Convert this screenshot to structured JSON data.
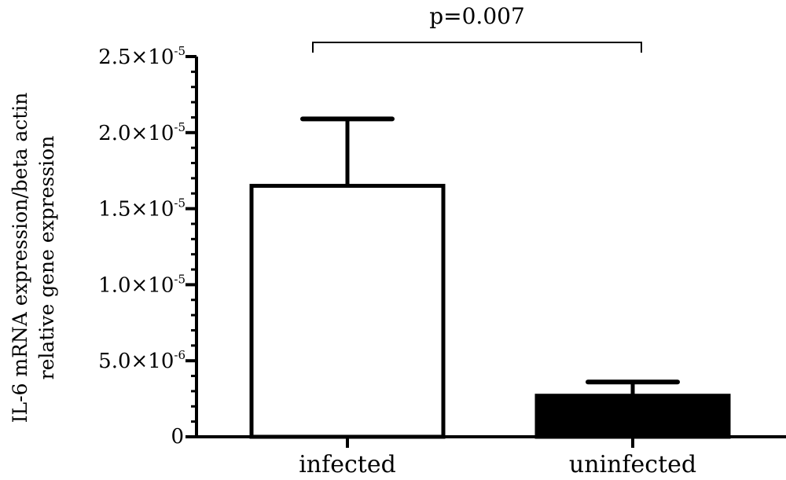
{
  "chart_data": {
    "type": "bar",
    "categories": [
      "infected",
      "uninfected"
    ],
    "series": [
      {
        "values": [
          1.65e-05,
          2.7e-06
        ],
        "errors": [
          4.4e-06,
          9e-07
        ],
        "fill_colors": [
          "#ffffff",
          "#000000"
        ]
      }
    ],
    "ylabel_lines": [
      "IL-6 mRNA expression/beta actin",
      "relative gene expression"
    ],
    "ylim": [
      0,
      2.5e-05
    ],
    "yticks": [
      {
        "value": 0,
        "mantissa": "0",
        "exponent": ""
      },
      {
        "value": 5e-06,
        "mantissa": "5.0×10",
        "exponent": "-6"
      },
      {
        "value": 1e-05,
        "mantissa": "1.0×10",
        "exponent": "-5"
      },
      {
        "value": 1.5e-05,
        "mantissa": "1.5×10",
        "exponent": "-5"
      },
      {
        "value": 2e-05,
        "mantissa": "2.0×10",
        "exponent": "-5"
      },
      {
        "value": 2.5e-05,
        "mantissa": "2.5×10",
        "exponent": "-5"
      }
    ],
    "annotations": [
      {
        "type": "significance-bracket",
        "between": [
          "infected",
          "uninfected"
        ],
        "text": "p=0.007"
      }
    ],
    "grid": false,
    "legend": "none"
  }
}
